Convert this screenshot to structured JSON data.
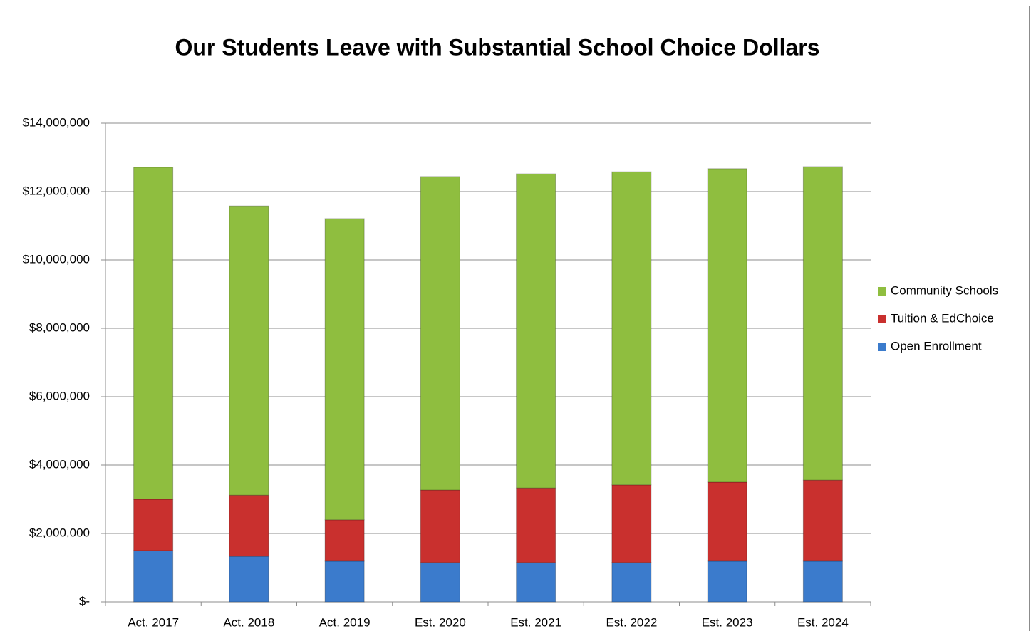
{
  "chart_data": {
    "type": "stacked_bar",
    "title": "Our Students Leave with Substantial School Choice Dollars",
    "categories": [
      "Act. 2017",
      "Act. 2018",
      "Act. 2019",
      "Est. 2020",
      "Est. 2021",
      "Est. 2022",
      "Est. 2023",
      "Est. 2024"
    ],
    "series": [
      {
        "name": "Open Enrollment",
        "color": "#3b7bcc",
        "values": [
          1500000,
          1330000,
          1190000,
          1150000,
          1150000,
          1150000,
          1190000,
          1190000
        ]
      },
      {
        "name": "Tuition & EdChoice",
        "color": "#c9302e",
        "values": [
          1500000,
          1790000,
          1210000,
          2120000,
          2180000,
          2270000,
          2310000,
          2370000
        ]
      },
      {
        "name": "Community Schools",
        "color": "#8fbe3f",
        "values": [
          9710000,
          8460000,
          8810000,
          9170000,
          9190000,
          9160000,
          9170000,
          9170000
        ]
      }
    ],
    "ylim": [
      0,
      14000000
    ],
    "yticks": [
      {
        "value": 0,
        "label": "$-"
      },
      {
        "value": 2000000,
        "label": "$2,000,000"
      },
      {
        "value": 4000000,
        "label": "$4,000,000"
      },
      {
        "value": 6000000,
        "label": "$6,000,000"
      },
      {
        "value": 8000000,
        "label": "$8,000,000"
      },
      {
        "value": 10000000,
        "label": "$10,000,000"
      },
      {
        "value": 12000000,
        "label": "$12,000,000"
      },
      {
        "value": 14000000,
        "label": "$14,000,000"
      }
    ],
    "grid": true,
    "legend": "right"
  }
}
